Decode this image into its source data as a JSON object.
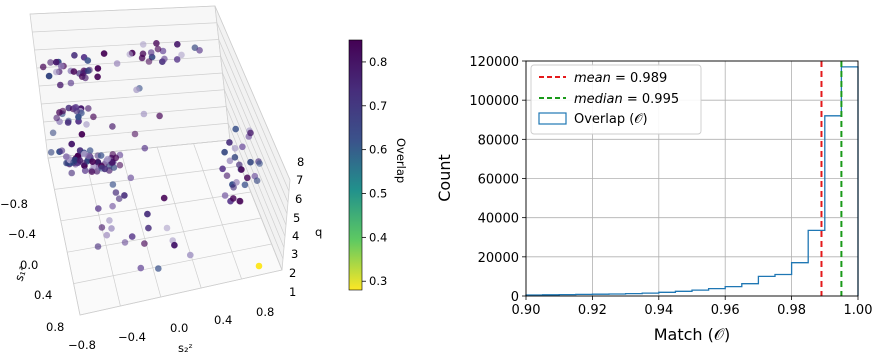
{
  "chart_data": [
    {
      "type": "scatter",
      "x_label": "s₂ᶻ",
      "y_label": "s₁ᶻ",
      "z_label": "q",
      "x_ticks": [
        "−0.8",
        "−0.4",
        "0.0",
        "0.4",
        "0.8"
      ],
      "y_ticks": [
        "−0.8",
        "−0.4",
        "0.0",
        "0.4",
        "0.8"
      ],
      "z_ticks": [
        "1",
        "2",
        "3",
        "4",
        "5",
        "6",
        "7",
        "8"
      ],
      "colorbar": {
        "label": "Overlap",
        "range": [
          0.28,
          0.85
        ],
        "ticks": [
          "0.3",
          "0.4",
          "0.5",
          "0.6",
          "0.7",
          "0.8"
        ],
        "colormap": "viridis_r"
      },
      "grid": true
    },
    {
      "type": "histogram",
      "xlabel": "Match (𝒪)",
      "ylabel": "Count",
      "xlim": [
        0.9,
        1.0
      ],
      "ylim": [
        0,
        120000
      ],
      "x_ticks": [
        "0.90",
        "0.92",
        "0.94",
        "0.96",
        "0.98",
        "1.00"
      ],
      "y_ticks": [
        "0",
        "20000",
        "40000",
        "60000",
        "80000",
        "100000",
        "120000"
      ],
      "bin_edges": [
        0.9,
        0.905,
        0.91,
        0.915,
        0.92,
        0.925,
        0.93,
        0.935,
        0.94,
        0.945,
        0.95,
        0.955,
        0.96,
        0.965,
        0.97,
        0.975,
        0.98,
        0.985,
        0.99,
        0.995,
        1.0
      ],
      "counts": [
        500,
        600,
        700,
        800,
        900,
        1000,
        1200,
        1500,
        1900,
        2400,
        3000,
        3800,
        4800,
        6300,
        10000,
        11000,
        17000,
        33500,
        92000,
        117000
      ],
      "series_name": "Overlap (𝒪)",
      "series_color": "#1f77b4",
      "vlines": [
        {
          "name": "mean",
          "value": 0.989,
          "color": "#e41a1c",
          "label_prefix": "mean",
          "label_value": " = 0.989"
        },
        {
          "name": "median",
          "value": 0.995,
          "color": "#1a9a1a",
          "label_prefix": "median",
          "label_value": " = 0.995"
        }
      ],
      "legend": "top-left",
      "grid": true
    }
  ]
}
